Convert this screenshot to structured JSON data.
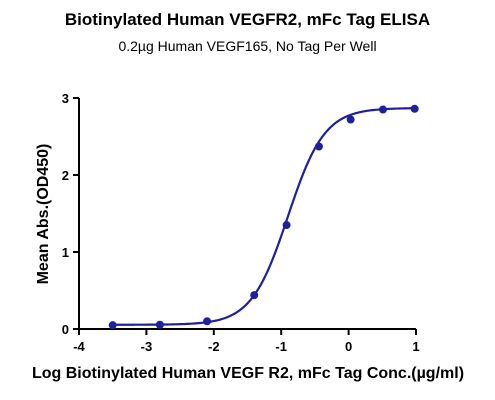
{
  "chart_data": {
    "type": "scatter",
    "title": "Biotinylated Human VEGFR2, mFc Tag ELISA",
    "subtitle": "0.2µg Human VEGF165, No Tag Per Well",
    "xlabel": "Log Biotinylated Human VEGF R2, mFc Tag Conc.(µg/ml)",
    "ylabel": "Mean Abs.(OD450)",
    "xlim": [
      -4,
      1
    ],
    "ylim": [
      0,
      3
    ],
    "xticks": [
      -4,
      -3,
      -2,
      -1,
      0,
      1
    ],
    "yticks": [
      0,
      1,
      2,
      3
    ],
    "grid": false,
    "series_color": "#1f1fa0",
    "points": {
      "x": [
        -3.5,
        -2.8,
        -2.1,
        -1.4,
        -0.92,
        -0.44,
        0.03,
        0.51,
        0.98
      ],
      "y": [
        0.05,
        0.055,
        0.1,
        0.44,
        1.35,
        2.37,
        2.72,
        2.85,
        2.86
      ]
    },
    "fit": {
      "model": "4PL",
      "bottom": 0.055,
      "top": 2.87,
      "ec50_log": -0.9,
      "hill": 1.6
    }
  }
}
